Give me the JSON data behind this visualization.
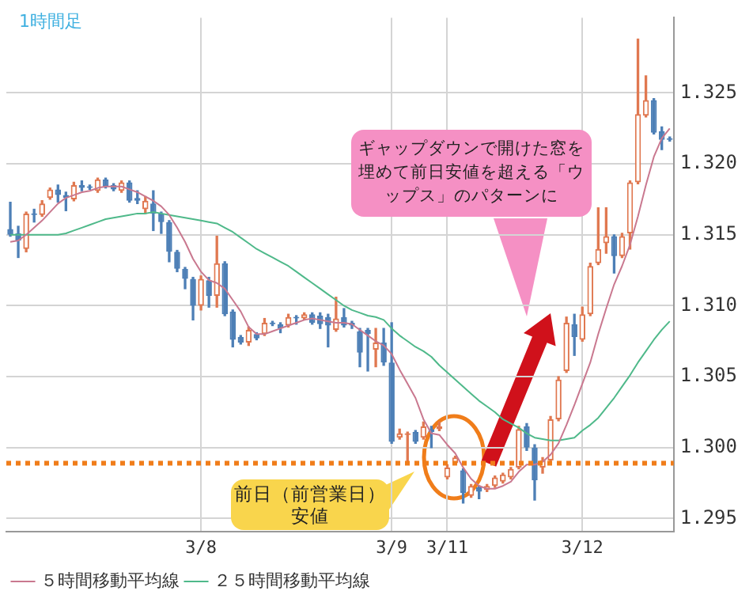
{
  "chart_data": {
    "type": "candlestick",
    "categories": [
      null,
      null,
      null,
      null,
      null,
      null,
      null,
      null,
      null,
      null,
      null,
      null,
      null,
      null,
      null,
      null,
      null,
      null,
      null,
      null,
      null,
      null,
      null,
      null,
      "3/8",
      null,
      null,
      null,
      null,
      null,
      null,
      null,
      null,
      null,
      null,
      null,
      null,
      null,
      null,
      null,
      null,
      null,
      null,
      null,
      null,
      null,
      null,
      null,
      "3/9",
      null,
      null,
      null,
      null,
      null,
      null,
      "3/11",
      null,
      null,
      null,
      null,
      null,
      null,
      null,
      null,
      null,
      null,
      null,
      null,
      null,
      null,
      null,
      null,
      "3/12",
      null,
      null,
      null,
      null,
      null,
      null,
      null,
      null,
      null,
      null,
      null
    ],
    "ohlc": [
      [
        1.3154,
        1.3173,
        1.3149,
        1.315
      ],
      [
        1.3151,
        1.3156,
        1.3134,
        1.3146
      ],
      [
        1.314,
        1.3166,
        1.3138,
        1.3165
      ],
      [
        1.3165,
        1.3168,
        1.3159,
        1.3164
      ],
      [
        1.3164,
        1.3174,
        1.3163,
        1.3172
      ],
      [
        1.3176,
        1.3183,
        1.3175,
        1.3182
      ],
      [
        1.3182,
        1.3185,
        1.3173,
        1.3178
      ],
      [
        1.3178,
        1.318,
        1.3167,
        1.3176
      ],
      [
        1.3175,
        1.3187,
        1.3174,
        1.3185
      ],
      [
        1.3185,
        1.3188,
        1.3181,
        1.3183
      ],
      [
        1.3184,
        1.3185,
        1.3182,
        1.3183
      ],
      [
        1.3181,
        1.319,
        1.318,
        1.3189
      ],
      [
        1.3189,
        1.319,
        1.3183,
        1.3184
      ],
      [
        1.3185,
        1.3186,
        1.3181,
        1.3182
      ],
      [
        1.3181,
        1.3188,
        1.318,
        1.3187
      ],
      [
        1.3187,
        1.3188,
        1.3173,
        1.3174
      ],
      [
        1.3176,
        1.3181,
        1.3172,
        1.3174
      ],
      [
        1.3168,
        1.3177,
        1.3165,
        1.3174
      ],
      [
        1.3172,
        1.3181,
        1.3153,
        1.3165
      ],
      [
        1.3165,
        1.3166,
        1.3151,
        1.3159
      ],
      [
        1.3159,
        1.316,
        1.3131,
        1.3138
      ],
      [
        1.3138,
        1.3139,
        1.3124,
        1.3126
      ],
      [
        1.3126,
        1.3127,
        1.3112,
        1.3119
      ],
      [
        1.3119,
        1.312,
        1.309,
        1.31
      ],
      [
        1.31,
        1.3121,
        1.3097,
        1.3119
      ],
      [
        1.3118,
        1.312,
        1.3099,
        1.3107
      ],
      [
        1.3107,
        1.3149,
        1.3099,
        1.313
      ],
      [
        1.313,
        1.3131,
        1.3093,
        1.3094
      ],
      [
        1.3096,
        1.3097,
        1.3071,
        1.3076
      ],
      [
        1.3078,
        1.3079,
        1.3073,
        1.3074
      ],
      [
        1.3074,
        1.3085,
        1.3072,
        1.3083
      ],
      [
        1.308,
        1.3081,
        1.3076,
        1.3077
      ],
      [
        1.308,
        1.3091,
        1.3079,
        1.3088
      ],
      [
        1.3088,
        1.3089,
        1.3086,
        1.3087
      ],
      [
        1.3087,
        1.3088,
        1.3081,
        1.3084
      ],
      [
        1.3086,
        1.3094,
        1.3085,
        1.3092
      ],
      [
        1.3092,
        1.3093,
        1.3087,
        1.3091
      ],
      [
        1.3091,
        1.3095,
        1.309,
        1.3094
      ],
      [
        1.3094,
        1.3095,
        1.3087,
        1.3088
      ],
      [
        1.3093,
        1.3095,
        1.3084,
        1.3087
      ],
      [
        1.3092,
        1.3094,
        1.3071,
        1.3086
      ],
      [
        1.3083,
        1.3106,
        1.3082,
        1.3091
      ],
      [
        1.3092,
        1.3098,
        1.3085,
        1.3086
      ],
      [
        1.3088,
        1.3089,
        1.3084,
        1.3086
      ],
      [
        1.3082,
        1.3084,
        1.3057,
        1.3067
      ],
      [
        1.3083,
        1.3084,
        1.3054,
        1.308
      ],
      [
        1.3069,
        1.3084,
        1.3057,
        1.3074
      ],
      [
        1.3074,
        1.3084,
        1.3058,
        1.306
      ],
      [
        1.306,
        1.3088,
        1.3003,
        1.3004
      ],
      [
        1.3007,
        1.3013,
        1.3006,
        1.301
      ],
      [
        1.3009,
        1.3011,
        1.2989,
        1.301
      ],
      [
        1.3011,
        1.3012,
        1.3003,
        1.3004
      ],
      [
        1.3007,
        1.3018,
        1.3006,
        1.3015
      ],
      [
        1.3013,
        1.3015,
        1.3,
        1.3011
      ],
      [
        1.3013,
        1.3018,
        1.3012,
        1.3015
      ],
      [
        1.2979,
        1.2988,
        1.2978,
        1.2986
      ],
      [
        1.2989,
        1.2994,
        1.2988,
        1.2993
      ],
      [
        1.2984,
        1.2985,
        1.2961,
        1.2968
      ],
      [
        1.2966,
        1.2974,
        1.2965,
        1.2973
      ],
      [
        1.2972,
        1.2973,
        1.2964,
        1.2969
      ],
      [
        1.297,
        1.2974,
        1.2969,
        1.2973
      ],
      [
        1.2973,
        1.298,
        1.2972,
        1.2979
      ],
      [
        1.2976,
        1.2982,
        1.2975,
        1.2981
      ],
      [
        1.2979,
        1.2986,
        1.2978,
        1.2985
      ],
      [
        1.2986,
        1.3015,
        1.2985,
        1.3013
      ],
      [
        1.3015,
        1.3017,
        1.2998,
        1.3
      ],
      [
        1.3,
        1.3002,
        1.2963,
        1.2977
      ],
      [
        1.2986,
        1.2993,
        1.2982,
        1.2991
      ],
      [
        1.2991,
        1.3022,
        1.2989,
        1.302
      ],
      [
        1.302,
        1.305,
        1.3019,
        1.3048
      ],
      [
        1.3054,
        1.3092,
        1.3053,
        1.3088
      ],
      [
        1.3087,
        1.3094,
        1.3065,
        1.3078
      ],
      [
        1.3076,
        1.3099,
        1.3075,
        1.3094
      ],
      [
        1.3094,
        1.313,
        1.3093,
        1.3128
      ],
      [
        1.313,
        1.3169,
        1.3129,
        1.314
      ],
      [
        1.3144,
        1.3169,
        1.3137,
        1.3149
      ],
      [
        1.3149,
        1.315,
        1.3123,
        1.3135
      ],
      [
        1.3135,
        1.3151,
        1.3134,
        1.3149
      ],
      [
        1.3151,
        1.3188,
        1.314,
        1.3187
      ],
      [
        1.3187,
        1.3288,
        1.3186,
        1.3235
      ],
      [
        1.3234,
        1.3262,
        1.3233,
        1.3245
      ],
      [
        1.3245,
        1.3246,
        1.3221,
        1.3222
      ],
      [
        1.3223,
        1.3226,
        1.321,
        1.3217
      ],
      [
        1.3218,
        1.3219,
        1.3216,
        1.3217
      ]
    ],
    "colors": [
      "#4d7fb6",
      "#4d7fb6",
      "#e07850",
      "#4d7fb6",
      "#e07850",
      "#e07850",
      "#4d7fb6",
      "#4d7fb6",
      "#e07850",
      "#4d7fb6",
      "#4d7fb6",
      "#e07850",
      "#4d7fb6",
      "#4d7fb6",
      "#e07850",
      "#4d7fb6",
      "#4d7fb6",
      "#e07850",
      "#4d7fb6",
      "#4d7fb6",
      "#4d7fb6",
      "#4d7fb6",
      "#4d7fb6",
      "#4d7fb6",
      "#e07850",
      "#4d7fb6",
      "#e07850",
      "#4d7fb6",
      "#4d7fb6",
      "#4d7fb6",
      "#e07850",
      "#4d7fb6",
      "#e07850",
      "#4d7fb6",
      "#4d7fb6",
      "#e07850",
      "#4d7fb6",
      "#e07850",
      "#4d7fb6",
      "#4d7fb6",
      "#4d7fb6",
      "#e07850",
      "#4d7fb6",
      "#4d7fb6",
      "#4d7fb6",
      "#4d7fb6",
      "#e07850",
      "#4d7fb6",
      "#4d7fb6",
      "#e07850",
      "#e07850",
      "#4d7fb6",
      "#e07850",
      "#4d7fb6",
      "#e07850",
      "#e07850",
      "#e07850",
      "#4d7fb6",
      "#e07850",
      "#4d7fb6",
      "#e07850",
      "#e07850",
      "#e07850",
      "#e07850",
      "#e07850",
      "#4d7fb6",
      "#4d7fb6",
      "#e07850",
      "#e07850",
      "#e07850",
      "#e07850",
      "#4d7fb6",
      "#e07850",
      "#e07850",
      "#e07850",
      "#e07850",
      "#4d7fb6",
      "#e07850",
      "#e07850",
      "#e07850",
      "#e07850",
      "#4d7fb6",
      "#4d7fb6",
      "#4d7fb6"
    ],
    "series": [
      {
        "name": "５時間移動平均線",
        "type": "line",
        "color": "#c9788f",
        "values": [
          1.3145,
          1.3146,
          1.315,
          1.3155,
          1.316,
          1.3166,
          1.3172,
          1.3176,
          1.3178,
          1.318,
          1.3181,
          1.3183,
          1.3184,
          1.3184,
          1.3184,
          1.3182,
          1.318,
          1.3177,
          1.3174,
          1.317,
          1.3164,
          1.3155,
          1.3145,
          1.3133,
          1.3124,
          1.3118,
          1.3116,
          1.3112,
          1.3104,
          1.3096,
          1.3085,
          1.308,
          1.308,
          1.3082,
          1.3084,
          1.3086,
          1.3088,
          1.309,
          1.3091,
          1.309,
          1.3089,
          1.3088,
          1.3088,
          1.3087,
          1.3083,
          1.3079,
          1.3075,
          1.3072,
          1.3066,
          1.3055,
          1.3045,
          1.3035,
          1.302,
          1.301,
          1.3009,
          1.3002,
          1.2996,
          1.2986,
          1.2978,
          1.2973,
          1.2971,
          1.2971,
          1.2973,
          1.2976,
          1.2983,
          1.2988,
          1.2988,
          1.299,
          1.2995,
          1.3003,
          1.3016,
          1.303,
          1.3045,
          1.306,
          1.308,
          1.3098,
          1.3115,
          1.3128,
          1.3143,
          1.3163,
          1.3185,
          1.3205,
          1.3218,
          1.3225
        ]
      },
      {
        "name": "２５時間移動平均線",
        "type": "line",
        "color": "#4fb98a",
        "values": [
          1.315,
          1.315,
          1.315,
          1.315,
          1.315,
          1.315,
          1.315,
          1.3151,
          1.3153,
          1.3155,
          1.3157,
          1.3159,
          1.3161,
          1.3162,
          1.3163,
          1.3164,
          1.3165,
          1.3165,
          1.3166,
          1.3165,
          1.3164,
          1.3163,
          1.3162,
          1.3161,
          1.316,
          1.3159,
          1.3158,
          1.3155,
          1.3152,
          1.3148,
          1.3144,
          1.314,
          1.3137,
          1.3134,
          1.3131,
          1.3128,
          1.3124,
          1.312,
          1.3116,
          1.3112,
          1.3108,
          1.3104,
          1.31,
          1.3097,
          1.3095,
          1.3093,
          1.3092,
          1.309,
          1.3084,
          1.3079,
          1.3075,
          1.3071,
          1.3068,
          1.3064,
          1.3058,
          1.3053,
          1.3048,
          1.3043,
          1.3038,
          1.3033,
          1.3029,
          1.3025,
          1.302,
          1.3017,
          1.3014,
          1.301,
          1.3007,
          1.3006,
          1.3005,
          1.3005,
          1.3006,
          1.3007,
          1.3012,
          1.3016,
          1.3021,
          1.3028,
          1.3035,
          1.3043,
          1.3051,
          1.306,
          1.3068,
          1.3076,
          1.3083,
          1.3089
        ]
      }
    ],
    "ylim": [
      1.2941,
      1.3303
    ],
    "yticks": [
      {
        "value": 1.295,
        "label": "1.295"
      },
      {
        "value": 1.3,
        "label": "1.300"
      },
      {
        "value": 1.305,
        "label": "1.305"
      },
      {
        "value": 1.31,
        "label": "1.310"
      },
      {
        "value": 1.315,
        "label": "1.315"
      },
      {
        "value": 1.32,
        "label": "1.320"
      },
      {
        "value": 1.325,
        "label": "1.325"
      }
    ],
    "grid": true,
    "legend": "bottom",
    "ref_lines": [
      {
        "axis": "y",
        "value": 1.2989,
        "label": "前日（前営業日）安値",
        "color": "#f07d1a",
        "line_style": "dotted"
      }
    ],
    "annotations": [
      "1時間足",
      "ギャップダウンで開けた窓を埋めて前日安値を超える「ウップス」のパターンに"
    ]
  }
}
